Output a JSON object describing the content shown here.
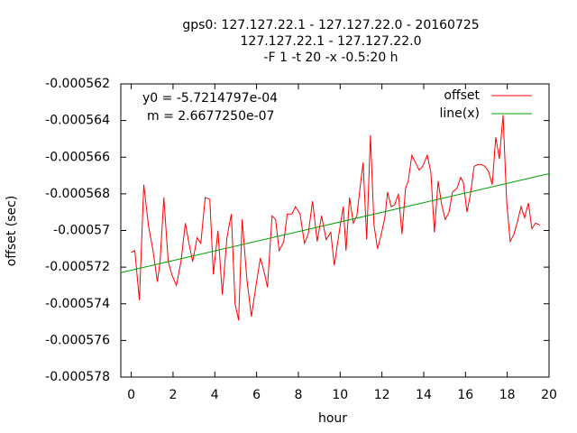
{
  "chart_data": {
    "type": "line",
    "title": [
      "gps0: 127.127.22.1 - 127.127.22.0 - 20160725",
      "127.127.22.1 - 127.127.22.0",
      "-F 1 -t 20 -x -0.5:20 h"
    ],
    "x_label": "hour",
    "y_label": "offset (sec)",
    "annotations": [
      "y0 = -5.7214797e-04",
      "m = 2.6677250e-07"
    ],
    "xlim": [
      -0.5,
      20
    ],
    "ylim": [
      -0.000578,
      -0.000562
    ],
    "xticks": [
      0,
      2,
      4,
      6,
      8,
      10,
      12,
      14,
      16,
      18,
      20
    ],
    "yticks": [
      -0.000562,
      -0.000564,
      -0.000566,
      -0.000568,
      -0.00057,
      -0.000572,
      -0.000574,
      -0.000576,
      -0.000578
    ],
    "legend": "top-right",
    "series": [
      {
        "name": "offset",
        "color": "#ff0000",
        "x": [
          0,
          0.17,
          0.39,
          0.6,
          0.82,
          1.04,
          1.25,
          1.38,
          1.56,
          1.77,
          1.94,
          2.16,
          2.38,
          2.59,
          2.76,
          2.94,
          3.15,
          3.33,
          3.54,
          3.76,
          3.93,
          4.15,
          4.36,
          4.58,
          4.79,
          4.97,
          5.14,
          5.31,
          5.53,
          5.75,
          5.96,
          6.18,
          6.35,
          6.52,
          6.74,
          6.91,
          7.08,
          7.3,
          7.47,
          7.69,
          7.86,
          8.08,
          8.29,
          8.47,
          8.68,
          8.9,
          9.11,
          9.33,
          9.55,
          9.72,
          9.94,
          10.15,
          10.28,
          10.45,
          10.63,
          10.8,
          10.97,
          11.1,
          11.27,
          11.45,
          11.62,
          11.79,
          11.97,
          12.14,
          12.27,
          12.44,
          12.61,
          12.79,
          12.96,
          13.13,
          13.26,
          13.43,
          13.61,
          13.78,
          13.95,
          14.17,
          14.34,
          14.51,
          14.69,
          14.86,
          15.03,
          15.21,
          15.38,
          15.59,
          15.77,
          15.9,
          16.07,
          16.24,
          16.41,
          16.59,
          16.76,
          16.93,
          17.11,
          17.28,
          17.45,
          17.62,
          17.8,
          17.97,
          18.14,
          18.32,
          18.49,
          18.66,
          18.83,
          19.01,
          19.18,
          19.35,
          19.57
        ],
        "values": [
          -0.0005712,
          -0.0005711,
          -0.0005738,
          -0.0005675,
          -0.0005697,
          -0.0005711,
          -0.0005728,
          -0.0005717,
          -0.0005682,
          -0.0005717,
          -0.0005724,
          -0.000573,
          -0.0005717,
          -0.0005696,
          -0.0005707,
          -0.0005717,
          -0.0005704,
          -0.0005707,
          -0.0005682,
          -0.0005683,
          -0.0005724,
          -0.00057,
          -0.0005735,
          -0.0005704,
          -0.0005691,
          -0.000574,
          -0.0005749,
          -0.0005694,
          -0.0005726,
          -0.0005747,
          -0.0005731,
          -0.0005715,
          -0.0005722,
          -0.0005731,
          -0.0005692,
          -0.0005694,
          -0.0005711,
          -0.0005706,
          -0.0005691,
          -0.0005691,
          -0.0005687,
          -0.0005691,
          -0.0005707,
          -0.0005702,
          -0.0005684,
          -0.0005706,
          -0.0005692,
          -0.0005705,
          -0.0005701,
          -0.0005719,
          -0.0005702,
          -0.0005687,
          -0.0005711,
          -0.0005682,
          -0.0005696,
          -0.0005692,
          -0.0005675,
          -0.0005663,
          -0.0005705,
          -0.0005648,
          -0.0005697,
          -0.000571,
          -0.0005702,
          -0.0005693,
          -0.0005679,
          -0.0005687,
          -0.0005686,
          -0.000568,
          -0.0005702,
          -0.0005677,
          -0.0005673,
          -0.0005659,
          -0.0005663,
          -0.0005667,
          -0.0005665,
          -0.0005659,
          -0.0005668,
          -0.0005701,
          -0.0005673,
          -0.0005686,
          -0.0005694,
          -0.000569,
          -0.0005679,
          -0.0005677,
          -0.0005671,
          -0.0005674,
          -0.000569,
          -0.000568,
          -0.0005665,
          -0.0005664,
          -0.0005664,
          -0.0005665,
          -0.0005668,
          -0.0005675,
          -0.0005649,
          -0.0005661,
          -0.0005637,
          -0.0005684,
          -0.0005706,
          -0.0005702,
          -0.0005695,
          -0.0005687,
          -0.0005693,
          -0.0005685,
          -0.0005699,
          -0.0005696,
          -0.0005697
        ]
      },
      {
        "name": "line(x)",
        "color": "#00a000",
        "x": [
          -0.5,
          20
        ],
        "values": [
          -0.0005723,
          -0.0005669
        ]
      }
    ]
  }
}
